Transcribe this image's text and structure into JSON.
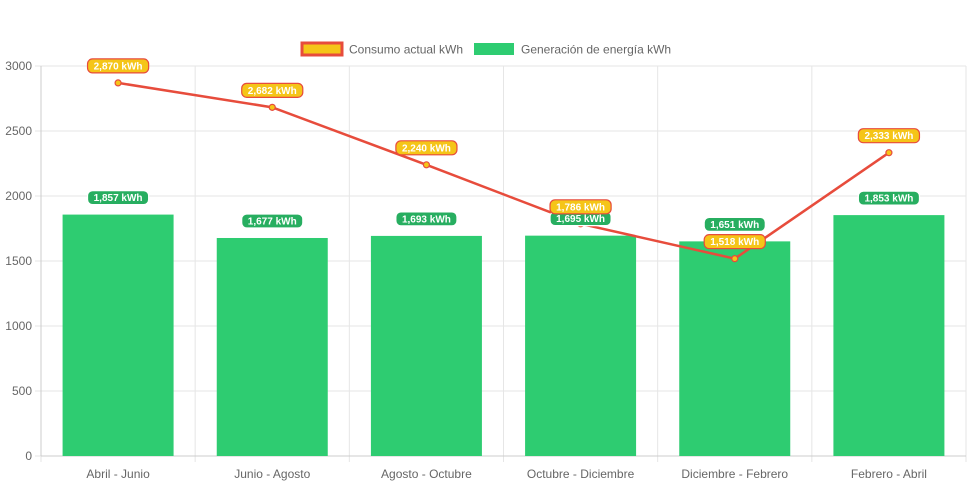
{
  "chart_data": {
    "type": "bar",
    "categories": [
      "Abril - Junio",
      "Junio - Agosto",
      "Agosto - Octubre",
      "Octubre - Diciembre",
      "Diciembre - Febrero",
      "Febrero - Abril"
    ],
    "series": [
      {
        "name": "Consumo actual kWh",
        "type": "line",
        "values": [
          2870,
          2682,
          2240,
          1786,
          1518,
          2333
        ],
        "labels": [
          "2,870 kWh",
          "2,682 kWh",
          "2,240 kWh",
          "1,786 kWh",
          "1,518 kWh",
          "2,333 kWh"
        ],
        "color": "#e74c3c",
        "fill_color": "#f5c518"
      },
      {
        "name": "Generación de energía kWh",
        "type": "bar",
        "values": [
          1857,
          1677,
          1693,
          1695,
          1651,
          1853
        ],
        "labels": [
          "1,857 kWh",
          "1,677 kWh",
          "1,693 kWh",
          "1,695 kWh",
          "1,651 kWh",
          "1,853 kWh"
        ],
        "color": "#2ecc71"
      }
    ],
    "y_ticks": [
      "0",
      "500",
      "1000",
      "1500",
      "2000",
      "2500",
      "3000"
    ],
    "ylim": [
      0,
      3000
    ],
    "grid": true,
    "legend_position": "top-center"
  }
}
